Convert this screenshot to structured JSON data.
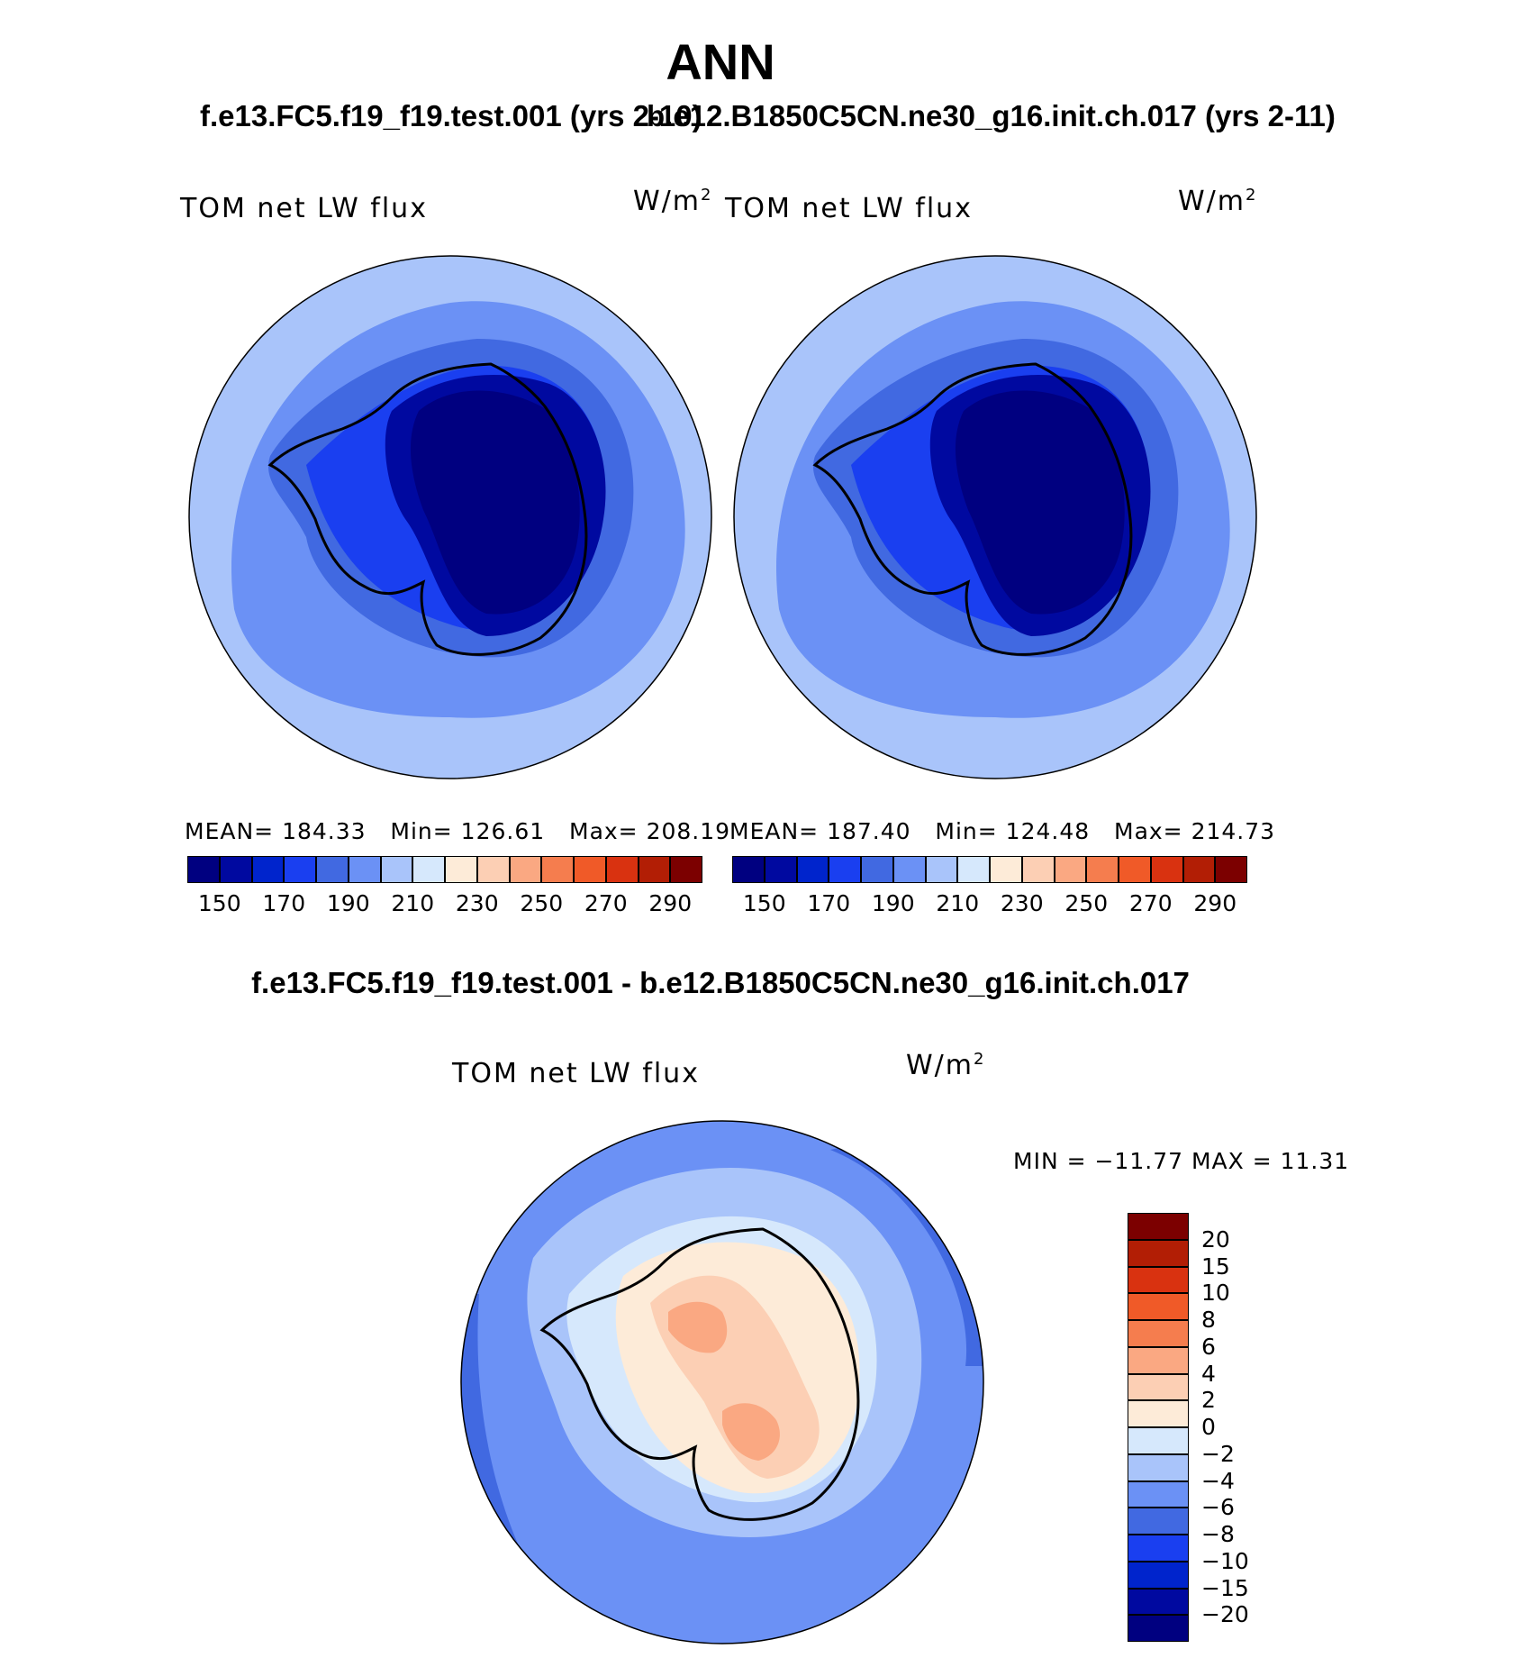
{
  "page": {
    "title": "ANN",
    "subtitle_left": "f.e13.FC5.f19_f19.test.001 (yrs 2-10)",
    "subtitle_right": "b.e12.B1850C5CN.ne30_g16.init.ch.017 (yrs 2-11)",
    "diff_title": "f.e13.FC5.f19_f19.test.001 - b.e12.B1850C5CN.ne30_g16.init.ch.017"
  },
  "panels": [
    {
      "variable": "TOM net LW flux",
      "units_base": "W/m",
      "units_exp": "2",
      "stats": {
        "mean_label": "MEAN=",
        "mean": "184.33",
        "min_label": "Min=",
        "min": "126.61",
        "max_label": "Max=",
        "max": "208.19"
      }
    },
    {
      "variable": "TOM net LW flux",
      "units_base": "W/m",
      "units_exp": "2",
      "stats": {
        "mean_label": "MEAN=",
        "mean": "187.40",
        "min_label": "Min=",
        "min": "124.48",
        "max_label": "Max=",
        "max": "214.73"
      }
    },
    {
      "variable": "TOM net LW flux",
      "units_base": "W/m",
      "units_exp": "2",
      "minmax": "MIN = −11.77  MAX =   11.31"
    }
  ],
  "colorbar_abs": {
    "colors": [
      "#000080",
      "#0009A0",
      "#0024CC",
      "#1A3FF0",
      "#4169E1",
      "#6B91F5",
      "#A9C4FA",
      "#D6E8FC",
      "#FDEBD8",
      "#FCCFB4",
      "#FAA882",
      "#F57D4E",
      "#F05A28",
      "#D93210",
      "#B21E05",
      "#7C0000"
    ],
    "labels": [
      "150",
      "170",
      "190",
      "210",
      "230",
      "250",
      "270",
      "290"
    ]
  },
  "colorbar_diff": {
    "colors": [
      "#7C0000",
      "#B21E05",
      "#D93210",
      "#F05A28",
      "#F57D4E",
      "#FAA882",
      "#FCCFB4",
      "#FDEBD8",
      "#D6E8FC",
      "#A9C4FA",
      "#6B91F5",
      "#4169E1",
      "#1A3FF0",
      "#0024CC",
      "#0009A0",
      "#000080"
    ],
    "labels": [
      "20",
      "15",
      "10",
      "8",
      "6",
      "4",
      "2",
      "0",
      "−2",
      "−4",
      "−6",
      "−8",
      "−10",
      "−15",
      "−20"
    ]
  }
}
